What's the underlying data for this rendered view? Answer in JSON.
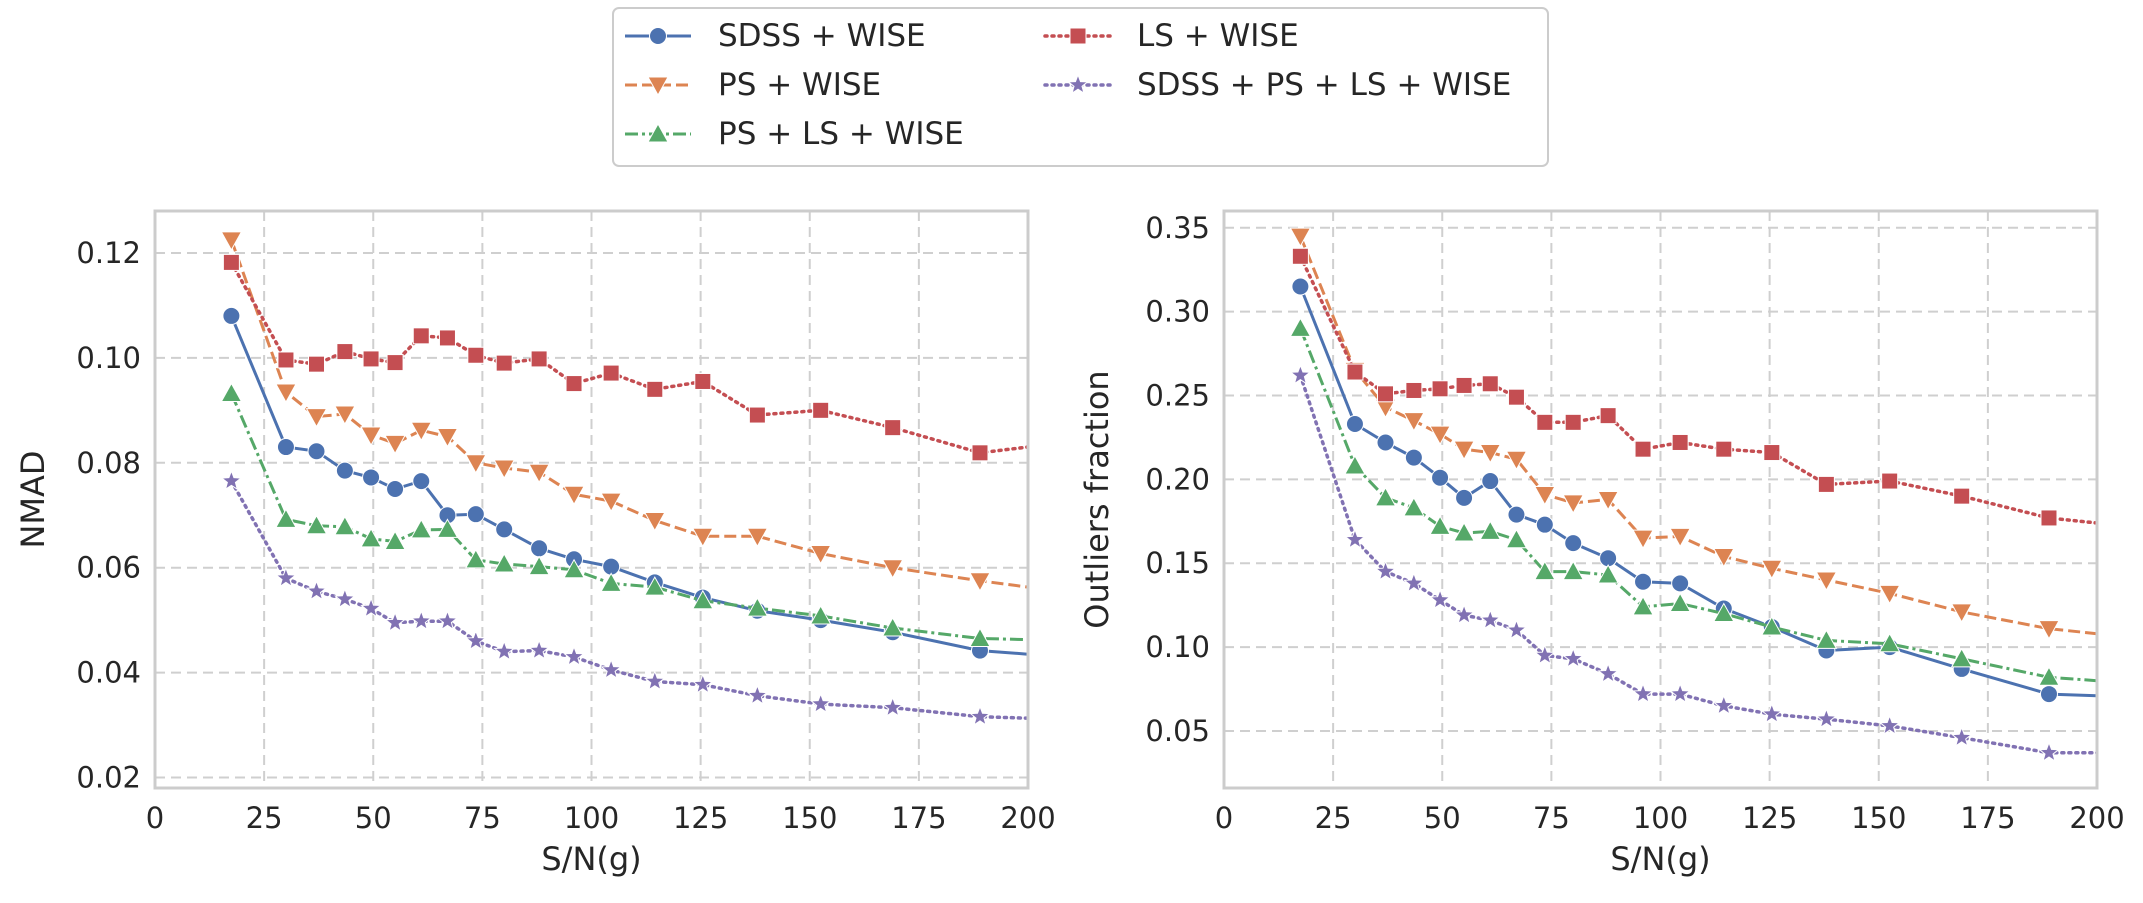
{
  "chart_data": {
    "type": "line",
    "legend": {
      "placement": "top-center",
      "entries": [
        "SDSS + WISE",
        "LS + WISE",
        "PS + WISE",
        "SDSS + PS + LS + WISE",
        "PS + LS + WISE"
      ]
    },
    "styles": {
      "SDSS + WISE": {
        "color": "#4c72b0",
        "dash": "solid",
        "marker": "circle"
      },
      "PS + WISE": {
        "color": "#dd8452",
        "dash": "dashed",
        "marker": "triangle-down"
      },
      "PS + LS + WISE": {
        "color": "#55a868",
        "dash": "dashdot",
        "marker": "triangle-up"
      },
      "LS + WISE": {
        "color": "#c44e52",
        "dash": "dotted",
        "marker": "square"
      },
      "SDSS + PS + LS + WISE": {
        "color": "#8172b3",
        "dash": "dotted",
        "marker": "star"
      }
    },
    "grid": true,
    "panels": [
      {
        "xlabel": "S/N(g)",
        "ylabel": "NMAD",
        "xlim": [
          0,
          200
        ],
        "ylim": [
          0.018,
          0.128
        ],
        "xticks": [
          0,
          25,
          50,
          75,
          100,
          125,
          150,
          175,
          200
        ],
        "yticks": [
          0.02,
          0.04,
          0.06,
          0.08,
          0.1,
          0.12
        ],
        "ytick_labels": [
          "0.02",
          "0.04",
          "0.06",
          "0.08",
          "0.10",
          "0.12"
        ],
        "series": [
          {
            "name": "SDSS + WISE",
            "x": [
              17.5,
              30,
              37,
              43.5,
              49.5,
              55,
              61,
              67,
              73.5,
              80,
              88,
              96,
              104.5,
              114.5,
              125.5,
              138,
              152.5,
              169,
              189,
              200
            ],
            "y": [
              0.108,
              0.083,
              0.0822,
              0.0785,
              0.0772,
              0.075,
              0.0765,
              0.07,
              0.0702,
              0.0673,
              0.0637,
              0.0616,
              0.0602,
              0.0572,
              0.0543,
              0.0518,
              0.05,
              0.0477,
              0.0442,
              0.0435
            ],
            "marker_count": 19
          },
          {
            "name": "PS + WISE",
            "x": [
              17.5,
              30,
              37,
              43.5,
              49.5,
              55,
              61,
              67,
              73.5,
              80,
              88,
              96,
              104.5,
              114.5,
              125.5,
              138,
              152.5,
              169,
              189,
              200
            ],
            "y": [
              0.1225,
              0.0935,
              0.0888,
              0.0893,
              0.0853,
              0.0837,
              0.0862,
              0.085,
              0.08,
              0.079,
              0.0782,
              0.074,
              0.0727,
              0.069,
              0.066,
              0.066,
              0.0627,
              0.06,
              0.0575,
              0.0563
            ],
            "marker_count": 19
          },
          {
            "name": "PS + LS + WISE",
            "x": [
              17.5,
              30,
              37,
              43.5,
              49.5,
              55,
              61,
              67,
              73.5,
              80,
              88,
              96,
              104.5,
              114.5,
              125.5,
              138,
              152.5,
              169,
              189,
              200
            ],
            "y": [
              0.0932,
              0.0692,
              0.068,
              0.0678,
              0.0655,
              0.065,
              0.0672,
              0.0673,
              0.0615,
              0.0607,
              0.0602,
              0.0596,
              0.057,
              0.0563,
              0.0537,
              0.0523,
              0.0508,
              0.0485,
              0.0465,
              0.0463
            ],
            "marker_count": 19
          },
          {
            "name": "LS + WISE",
            "x": [
              17.5,
              30,
              37,
              43.5,
              49.5,
              55,
              61,
              67,
              73.5,
              80,
              88,
              96,
              104.5,
              114.5,
              125.5,
              138,
              152.5,
              169,
              189,
              200
            ],
            "y": [
              0.1182,
              0.0996,
              0.0988,
              0.1012,
              0.0998,
              0.0991,
              0.1042,
              0.1038,
              0.1005,
              0.099,
              0.0998,
              0.0951,
              0.0971,
              0.094,
              0.0955,
              0.0891,
              0.09,
              0.0867,
              0.0819,
              0.083
            ],
            "marker_count": 19
          },
          {
            "name": "SDSS + PS + LS + WISE",
            "x": [
              17.5,
              30,
              37,
              43.5,
              49.5,
              55,
              61,
              67,
              73.5,
              80,
              88,
              96,
              104.5,
              114.5,
              125.5,
              138,
              152.5,
              169,
              189,
              200
            ],
            "y": [
              0.0765,
              0.058,
              0.0555,
              0.054,
              0.0522,
              0.0495,
              0.0498,
              0.0498,
              0.046,
              0.044,
              0.0442,
              0.043,
              0.0405,
              0.0383,
              0.0377,
              0.0356,
              0.034,
              0.0333,
              0.0316,
              0.0313
            ],
            "marker_count": 19
          }
        ]
      },
      {
        "xlabel": "S/N(g)",
        "ylabel": "Outliers fraction",
        "xlim": [
          0,
          200
        ],
        "ylim": [
          0.016,
          0.36
        ],
        "xticks": [
          0,
          25,
          50,
          75,
          100,
          125,
          150,
          175,
          200
        ],
        "yticks": [
          0.05,
          0.1,
          0.15,
          0.2,
          0.25,
          0.3,
          0.35
        ],
        "ytick_labels": [
          "0.05",
          "0.10",
          "0.15",
          "0.20",
          "0.25",
          "0.30",
          "0.35"
        ],
        "series": [
          {
            "name": "SDSS + WISE",
            "x": [
              17.5,
              30,
              37,
              43.5,
              49.5,
              55,
              61,
              67,
              73.5,
              80,
              88,
              96,
              104.5,
              114.5,
              125.5,
              138,
              152.5,
              169,
              189,
              200
            ],
            "y": [
              0.315,
              0.233,
              0.222,
              0.213,
              0.201,
              0.189,
              0.199,
              0.179,
              0.173,
              0.162,
              0.153,
              0.139,
              0.138,
              0.123,
              0.112,
              0.098,
              0.1,
              0.087,
              0.072,
              0.071
            ],
            "marker_count": 19
          },
          {
            "name": "PS + WISE",
            "x": [
              17.5,
              30,
              37,
              43.5,
              49.5,
              55,
              61,
              67,
              73.5,
              80,
              88,
              96,
              104.5,
              114.5,
              125.5,
              138,
              152.5,
              169,
              189,
              200
            ],
            "y": [
              0.345,
              0.265,
              0.243,
              0.235,
              0.227,
              0.218,
              0.216,
              0.212,
              0.191,
              0.186,
              0.188,
              0.165,
              0.166,
              0.154,
              0.147,
              0.14,
              0.132,
              0.121,
              0.111,
              0.108
            ],
            "marker_count": 19
          },
          {
            "name": "PS + LS + WISE",
            "x": [
              17.5,
              30,
              37,
              43.5,
              49.5,
              55,
              61,
              67,
              73.5,
              80,
              88,
              96,
              104.5,
              114.5,
              125.5,
              138,
              152.5,
              169,
              189,
              200
            ],
            "y": [
              0.29,
              0.208,
              0.189,
              0.183,
              0.172,
              0.168,
              0.169,
              0.164,
              0.145,
              0.145,
              0.143,
              0.124,
              0.126,
              0.12,
              0.112,
              0.104,
              0.102,
              0.093,
              0.082,
              0.08
            ],
            "marker_count": 19
          },
          {
            "name": "LS + WISE",
            "x": [
              17.5,
              30,
              37,
              43.5,
              49.5,
              55,
              61,
              67,
              73.5,
              80,
              88,
              96,
              104.5,
              114.5,
              125.5,
              138,
              152.5,
              169,
              189,
              200
            ],
            "y": [
              0.333,
              0.264,
              0.251,
              0.253,
              0.254,
              0.256,
              0.257,
              0.249,
              0.234,
              0.234,
              0.238,
              0.218,
              0.222,
              0.218,
              0.216,
              0.197,
              0.199,
              0.19,
              0.177,
              0.174
            ],
            "marker_count": 19
          },
          {
            "name": "SDSS + PS + LS + WISE",
            "x": [
              17.5,
              30,
              37,
              43.5,
              49.5,
              55,
              61,
              67,
              73.5,
              80,
              88,
              96,
              104.5,
              114.5,
              125.5,
              138,
              152.5,
              169,
              189,
              200
            ],
            "y": [
              0.262,
              0.164,
              0.145,
              0.138,
              0.128,
              0.119,
              0.116,
              0.11,
              0.095,
              0.093,
              0.084,
              0.072,
              0.072,
              0.065,
              0.06,
              0.057,
              0.053,
              0.046,
              0.037,
              0.037
            ],
            "marker_count": 19
          }
        ]
      }
    ]
  }
}
